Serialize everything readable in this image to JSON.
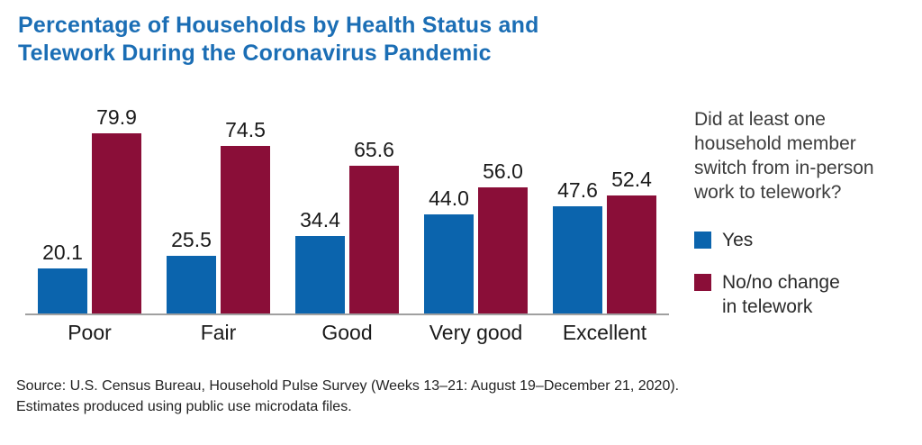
{
  "title": {
    "text": "Percentage of Households by Health Status and\nTelework During the Coronavirus Pandemic",
    "color": "#1b6eb5"
  },
  "chart_data": {
    "type": "bar",
    "title": "Percentage of Households by Health Status and Telework During the Coronavirus Pandemic",
    "categories": [
      "Poor",
      "Fair",
      "Good",
      "Very good",
      "Excellent"
    ],
    "series": [
      {
        "name": "Yes",
        "color": "#0b64ad",
        "values": [
          20.1,
          25.5,
          34.4,
          44.0,
          47.6
        ]
      },
      {
        "name": "No/no change in telework",
        "color": "#8a0e38",
        "values": [
          79.9,
          74.5,
          65.6,
          56.0,
          52.4
        ]
      }
    ],
    "value_labels_shown": true,
    "value_label_decimals": 1,
    "xlabel": "",
    "ylabel": "",
    "ylim": [
      0,
      80
    ],
    "grid": false,
    "axis_line_color": "#a0a0a0",
    "legend_position": "right"
  },
  "legend": {
    "question": "Did at least one\nhousehold member\nswitch from in-person\nwork to telework?",
    "items": [
      {
        "label": "Yes",
        "color": "#0b64ad"
      },
      {
        "label": "No/no change\nin telework",
        "color": "#8a0e38"
      }
    ]
  },
  "source": {
    "line1": "Source: U.S. Census Bureau, Household Pulse Survey (Weeks 13–21: August 19–December 21, 2020).",
    "line2": "Estimates produced using public use microdata files."
  }
}
